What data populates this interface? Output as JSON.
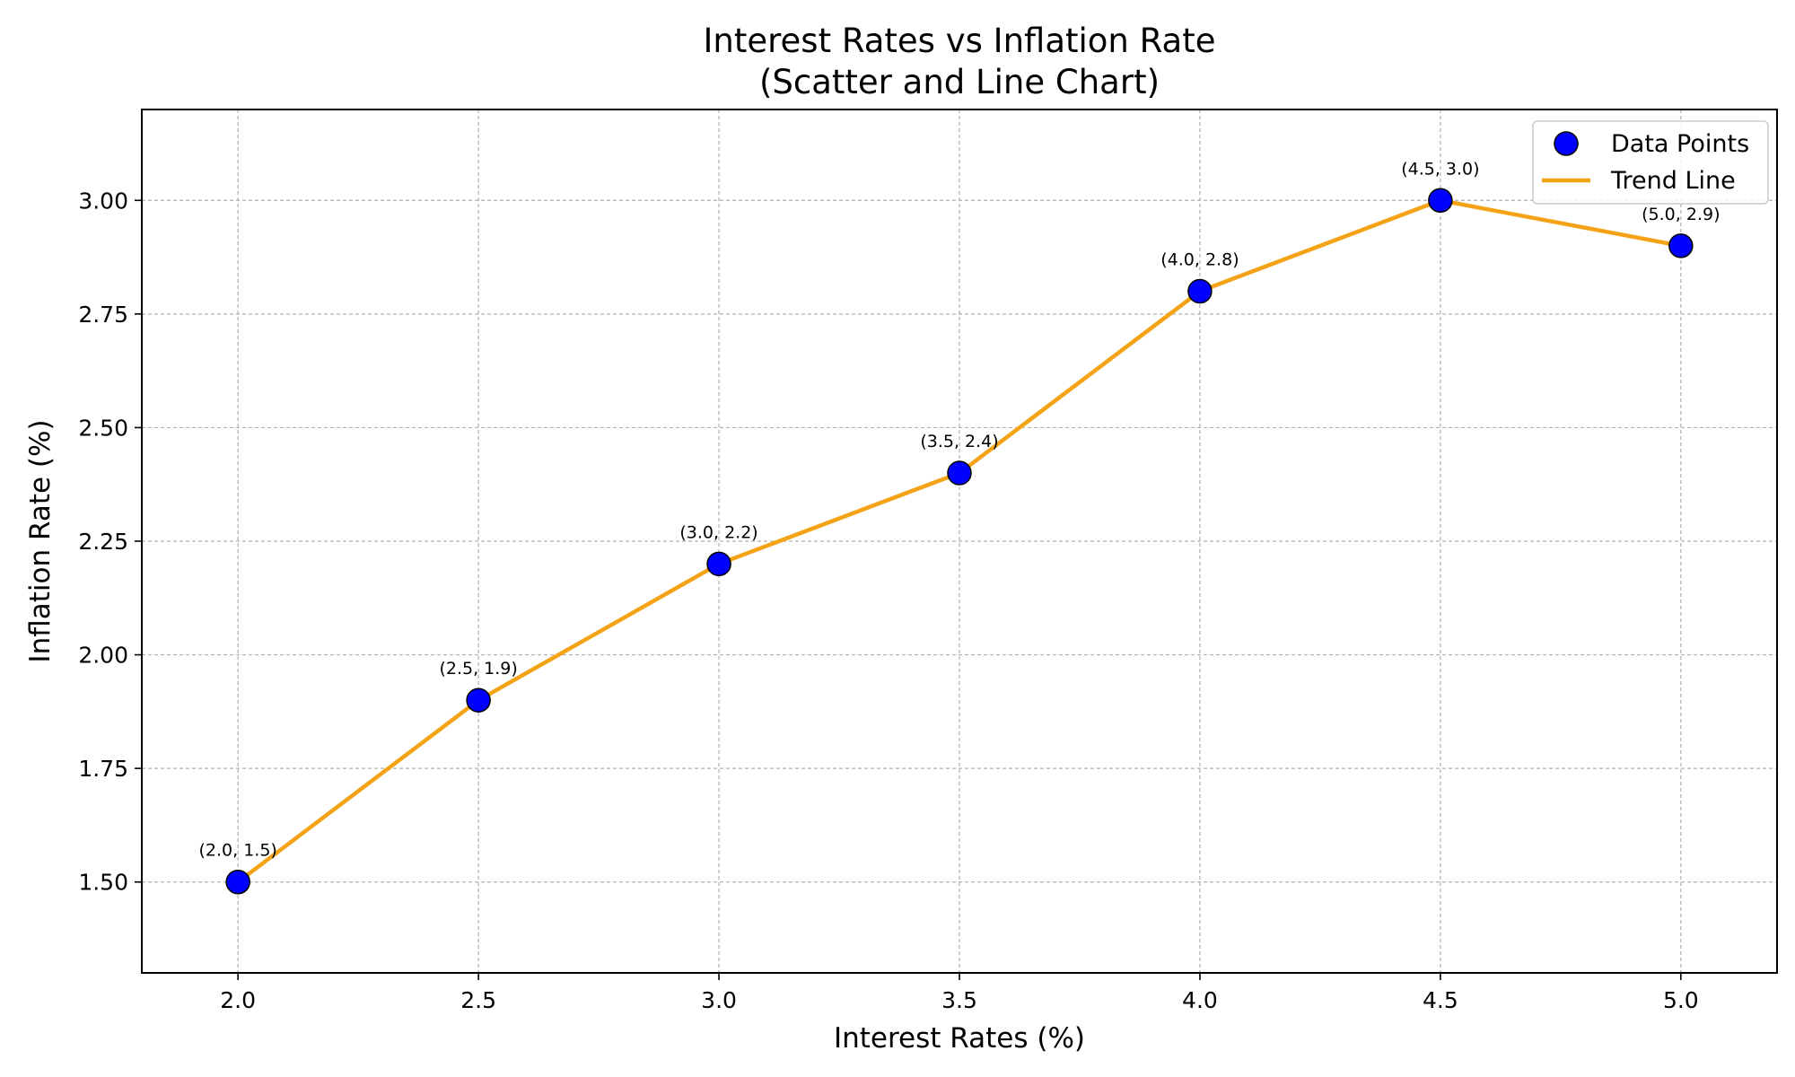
{
  "chart_data": {
    "type": "scatter",
    "title": "Interest Rates vs Inflation Rate",
    "subtitle": "(Scatter and Line Chart)",
    "xlabel": "Interest Rates (%)",
    "ylabel": "Inflation Rate (%)",
    "xlim": [
      1.8,
      5.2
    ],
    "ylim": [
      1.3,
      3.2
    ],
    "xticks": [
      2.0,
      2.5,
      3.0,
      3.5,
      4.0,
      4.5,
      5.0
    ],
    "xtick_labels": [
      "2.0",
      "2.5",
      "3.0",
      "3.5",
      "4.0",
      "4.5",
      "5.0"
    ],
    "yticks": [
      1.5,
      1.75,
      2.0,
      2.25,
      2.5,
      2.75,
      3.0
    ],
    "ytick_labels": [
      "1.50",
      "1.75",
      "2.00",
      "2.25",
      "2.50",
      "2.75",
      "3.00"
    ],
    "grid": true,
    "legend_position": "top-right",
    "x": [
      2.0,
      2.5,
      3.0,
      3.5,
      4.0,
      4.5,
      5.0
    ],
    "series": [
      {
        "name": "Data Points",
        "kind": "scatter",
        "color": "#0000ff",
        "edge_color": "#000000",
        "values": [
          1.5,
          1.9,
          2.2,
          2.4,
          2.8,
          3.0,
          2.9
        ]
      },
      {
        "name": "Trend Line",
        "kind": "line",
        "color": "#f5a316",
        "values": [
          1.5,
          1.9,
          2.2,
          2.4,
          2.8,
          3.0,
          2.9
        ]
      }
    ],
    "point_labels": [
      "(2.0, 1.5)",
      "(2.5, 1.9)",
      "(3.0, 2.2)",
      "(3.5, 2.4)",
      "(4.0, 2.8)",
      "(4.5, 3.0)",
      "(5.0, 2.9)"
    ]
  }
}
